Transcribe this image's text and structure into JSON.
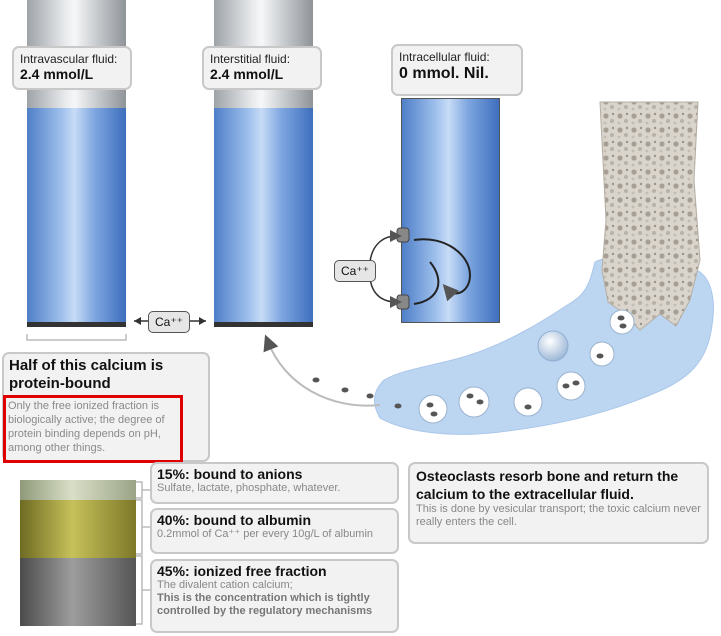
{
  "compartments": {
    "intravascular": {
      "label": "Intravascular fluid:",
      "value": "2.4 mmol/L"
    },
    "interstitial": {
      "label": "Interstitial fluid:",
      "value": "2.4 mmol/L"
    },
    "intracellular": {
      "label": "Intracellular fluid:",
      "value": "0 mmol. Nil."
    }
  },
  "ca_labels": {
    "exchange": "Ca⁺⁺",
    "cell": "Ca⁺⁺"
  },
  "protein": {
    "title": "Half of this calcium is protein-bound",
    "text": "Only the free ionized fraction is biologically active; the degree of protein binding depends on pH, among other things."
  },
  "fractions": [
    {
      "title": "15%: bound to anions",
      "text": "Sulfate, lactate, phosphate, whatever."
    },
    {
      "title": "40%: bound to albumin",
      "text": "0.2mmol of Ca⁺⁺ per every 10g/L of albumin"
    },
    {
      "title": "45%: ionized free fraction",
      "text": "The divalent cation calcium;",
      "bold_text": "This is the concentration which is tightly controlled by the regulatory mechanisms"
    }
  ],
  "osteoclast": {
    "title": "Osteoclasts resorb bone and return the calcium to the extracellular fluid.",
    "text": "This is done by vesicular transport; the toxic calcium never really enters the cell."
  },
  "colors": {
    "highlight": "#e00000",
    "fluid_blue": "#7ea6e0",
    "bone_fluid": "#bcd6f2"
  }
}
